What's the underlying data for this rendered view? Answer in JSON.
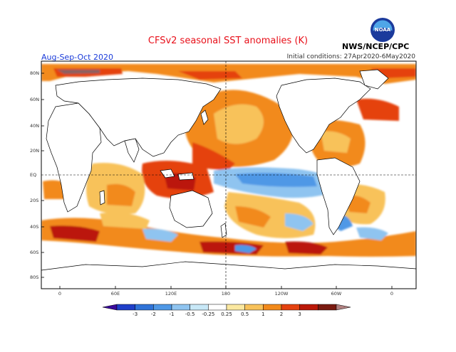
{
  "header": {
    "title": "CFSv2 seasonal SST anomalies (K)",
    "period": "Aug-Sep-Oct 2020",
    "initial_conditions": "Initial conditions: 27Apr2020-6May2020",
    "source": "NWS/NCEP/CPC",
    "logo_text": "NOAA"
  },
  "map": {
    "lat_labels": [
      "80N",
      "60N",
      "40N",
      "20N",
      "EQ",
      "20S",
      "40S",
      "60S",
      "80S"
    ],
    "lon_labels": [
      "0",
      "60E",
      "120E",
      "180",
      "120W",
      "60W",
      "0"
    ]
  },
  "colorbar": {
    "ticks": [
      "-3",
      "-2",
      "-1",
      "-0.5",
      "-0.25",
      "0.25",
      "0.5",
      "1",
      "2",
      "3"
    ],
    "colors": [
      "#3a0a9c",
      "#1f3fc9",
      "#2f73d8",
      "#4f98e6",
      "#8fc4f0",
      "#c8e8f7",
      "#ffffff",
      "#fbe8a0",
      "#f8c25a",
      "#f28a1a",
      "#e5420f",
      "#bb1808",
      "#7a1a10",
      "#b08080"
    ]
  }
}
